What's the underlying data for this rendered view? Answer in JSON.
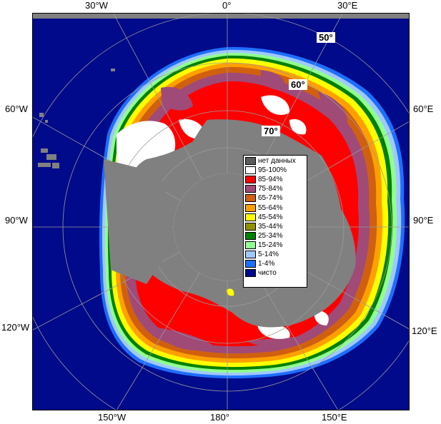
{
  "map": {
    "colors": {
      "ocean": "#000a8a",
      "land": "#808080",
      "frame_bg": "#808080",
      "grid": "#9a9a9a",
      "ice_95_100": "#ffffff",
      "ice_85_94": "#ff0000",
      "ice_75_84": "#a04a78",
      "ice_65_74": "#d06010",
      "ice_55_64": "#ffa000",
      "ice_45_54": "#ffff00",
      "ice_35_44": "#909000",
      "ice_25_34": "#008000",
      "ice_15_24": "#90ff90",
      "ice_5_14": "#a0c8ff",
      "ice_1_4": "#1e6eff",
      "clear": "#000a8a"
    },
    "longitude_labels": {
      "top": [
        "30°W",
        "0°",
        "30°E"
      ],
      "left": [
        "60°W",
        "90°W",
        "120°W"
      ],
      "right": [
        "60°E",
        "90°E",
        "120°E"
      ],
      "bottom": [
        "150°W",
        "180°",
        "150°E"
      ]
    },
    "latitude_labels": [
      "50°",
      "60°",
      "70°"
    ]
  },
  "legend": {
    "items": [
      {
        "label": "нет данных",
        "color": "#5a5a5a"
      },
      {
        "label": "95-100%",
        "color": "#ffffff"
      },
      {
        "label": "85-94%",
        "color": "#ff0000"
      },
      {
        "label": "75-84%",
        "color": "#a04a78"
      },
      {
        "label": "65-74%",
        "color": "#d06010"
      },
      {
        "label": "55-64%",
        "color": "#ffa000"
      },
      {
        "label": "45-54%",
        "color": "#ffff00"
      },
      {
        "label": "35-44%",
        "color": "#909000"
      },
      {
        "label": "25-34%",
        "color": "#008000"
      },
      {
        "label": "15-24%",
        "color": "#90ff90"
      },
      {
        "label": "5-14%",
        "color": "#a0c8ff"
      },
      {
        "label": "1-4%",
        "color": "#1e6eff"
      },
      {
        "label": "чисто",
        "color": "#000a8a"
      }
    ]
  }
}
